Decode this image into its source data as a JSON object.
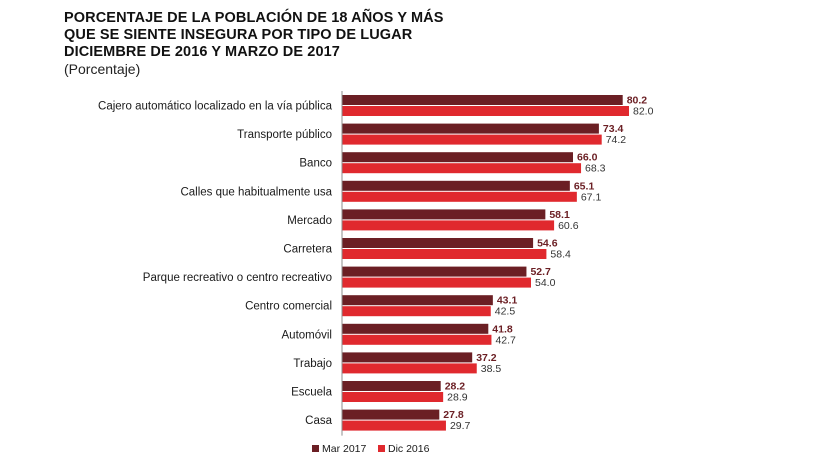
{
  "chart_data": {
    "type": "bar",
    "orientation": "horizontal",
    "title": "PORCENTAJE DE LA POBLACIÓN DE 18 AÑOS Y MÁS QUE SE SIENTE INSEGURA POR TIPO DE LUGAR DICIEMBRE DE 2016 Y MARZO DE 2017",
    "title_lines": [
      "PORCENTAJE DE LA POBLACIÓN DE 18 AÑOS Y MÁS",
      "QUE SE SIENTE INSEGURA POR TIPO DE LUGAR",
      "DICIEMBRE DE 2016 Y MARZO DE 2017"
    ],
    "subtitle": "(Porcentaje)",
    "xlabel": "",
    "ylabel": "",
    "xlim": [
      0,
      100
    ],
    "grid": false,
    "legend_position": "bottom",
    "categories": [
      "Cajero automático localizado en la vía pública",
      "Transporte público",
      "Banco",
      "Calles que habitualmente usa",
      "Mercado",
      "Carretera",
      "Parque recreativo o centro recreativo",
      "Centro comercial",
      "Automóvil",
      "Trabajo",
      "Escuela",
      "Casa"
    ],
    "series": [
      {
        "name": "Mar 2017",
        "color": "#6b1f24",
        "label_color": "#6b1f24",
        "label_bold": true,
        "values": [
          80.2,
          73.4,
          66.0,
          65.1,
          58.1,
          54.6,
          52.7,
          43.1,
          41.8,
          37.2,
          28.2,
          27.8
        ],
        "value_labels": [
          "80.2",
          "73.4",
          "66.0",
          "65.1",
          "58.1",
          "54.6",
          "52.7",
          "43.1",
          "41.8",
          "37.2",
          "28.2",
          "27.8"
        ]
      },
      {
        "name": "Dic 2016",
        "color": "#e0292e",
        "label_color": "#333333",
        "label_bold": false,
        "values": [
          82.0,
          74.2,
          68.3,
          67.1,
          60.6,
          58.4,
          54.0,
          42.5,
          42.7,
          38.5,
          28.9,
          29.7
        ],
        "value_labels": [
          "82.0",
          "74.2",
          "68.3",
          "67.1",
          "60.6",
          "58.4",
          "54.0",
          "42.5",
          "42.7",
          "38.5",
          "28.9",
          "29.7"
        ]
      }
    ]
  }
}
